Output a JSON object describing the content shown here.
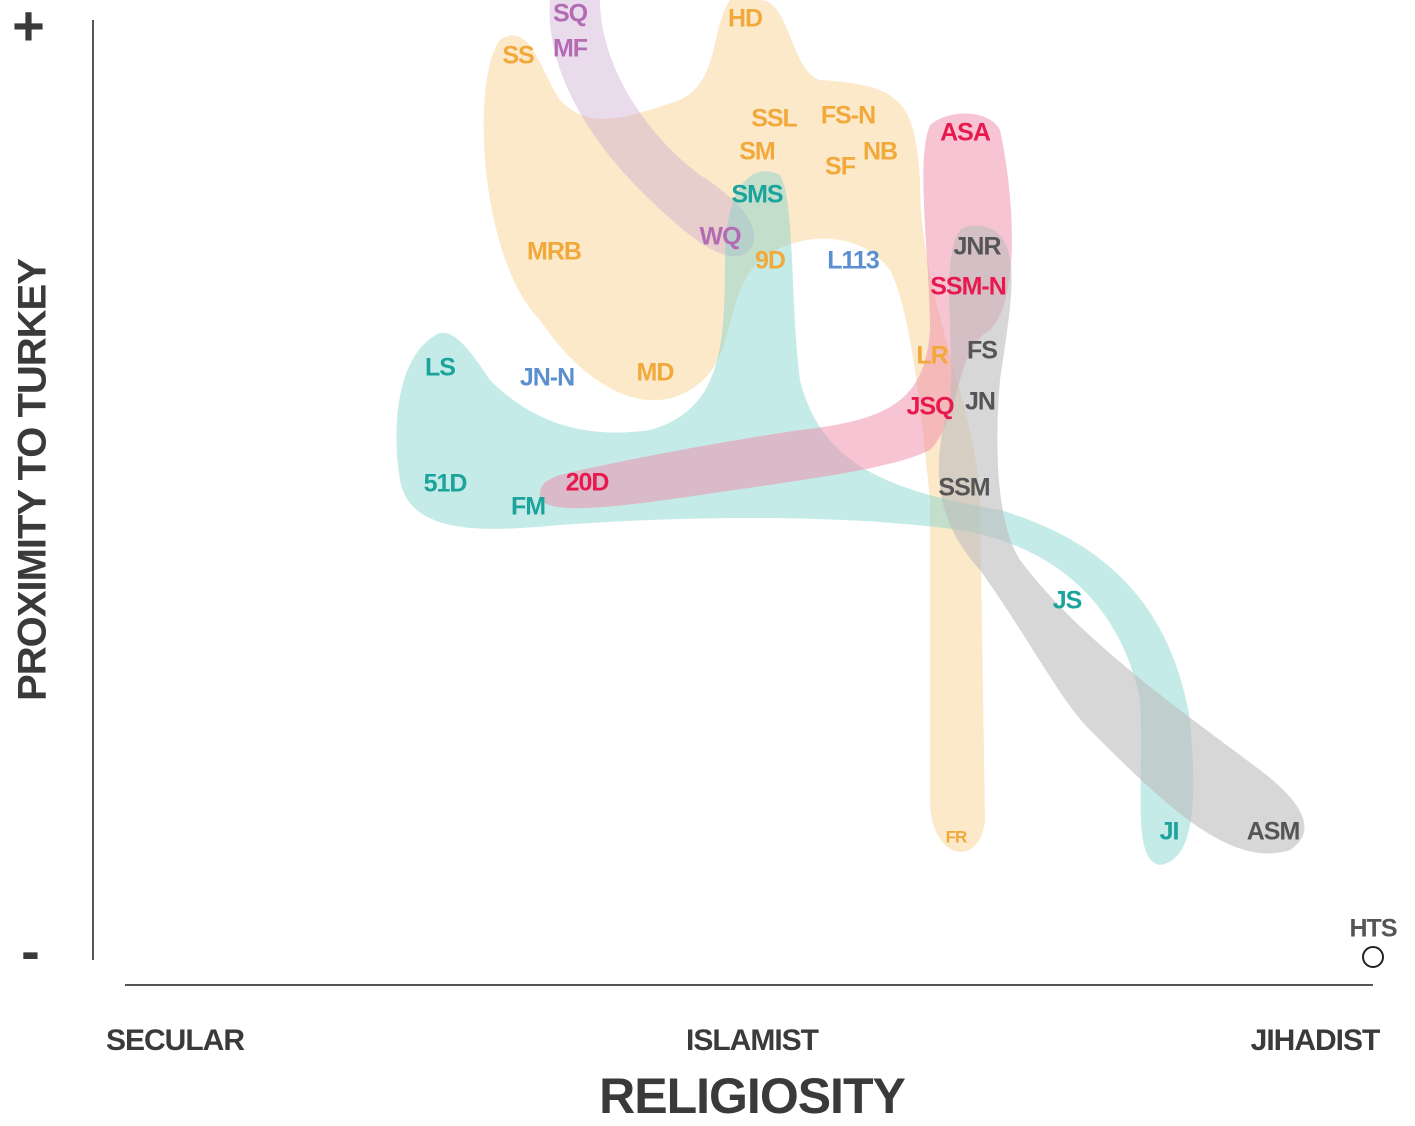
{
  "y_axis": {
    "title": "PROXIMITY TO TURKEY",
    "plus": "+",
    "minus": "-"
  },
  "x_axis": {
    "title": "RELIGIOSITY",
    "labels": [
      "SECULAR",
      "ISLAMIST",
      "JIHADIST"
    ]
  },
  "labels": [
    "SQ",
    "HD",
    "SS",
    "MF",
    "SSL",
    "FS-N",
    "ASA",
    "SM",
    "NB",
    "SF",
    "SMS",
    "WQ",
    "JNR",
    "MRB",
    "9D",
    "L113",
    "SSM-N",
    "FS",
    "LR",
    "LS",
    "JN-N",
    "MD",
    "JSQ",
    "JN",
    "51D",
    "20D",
    "FM",
    "SSM",
    "JS",
    "FR",
    "JI",
    "ASM",
    "HTS"
  ]
}
